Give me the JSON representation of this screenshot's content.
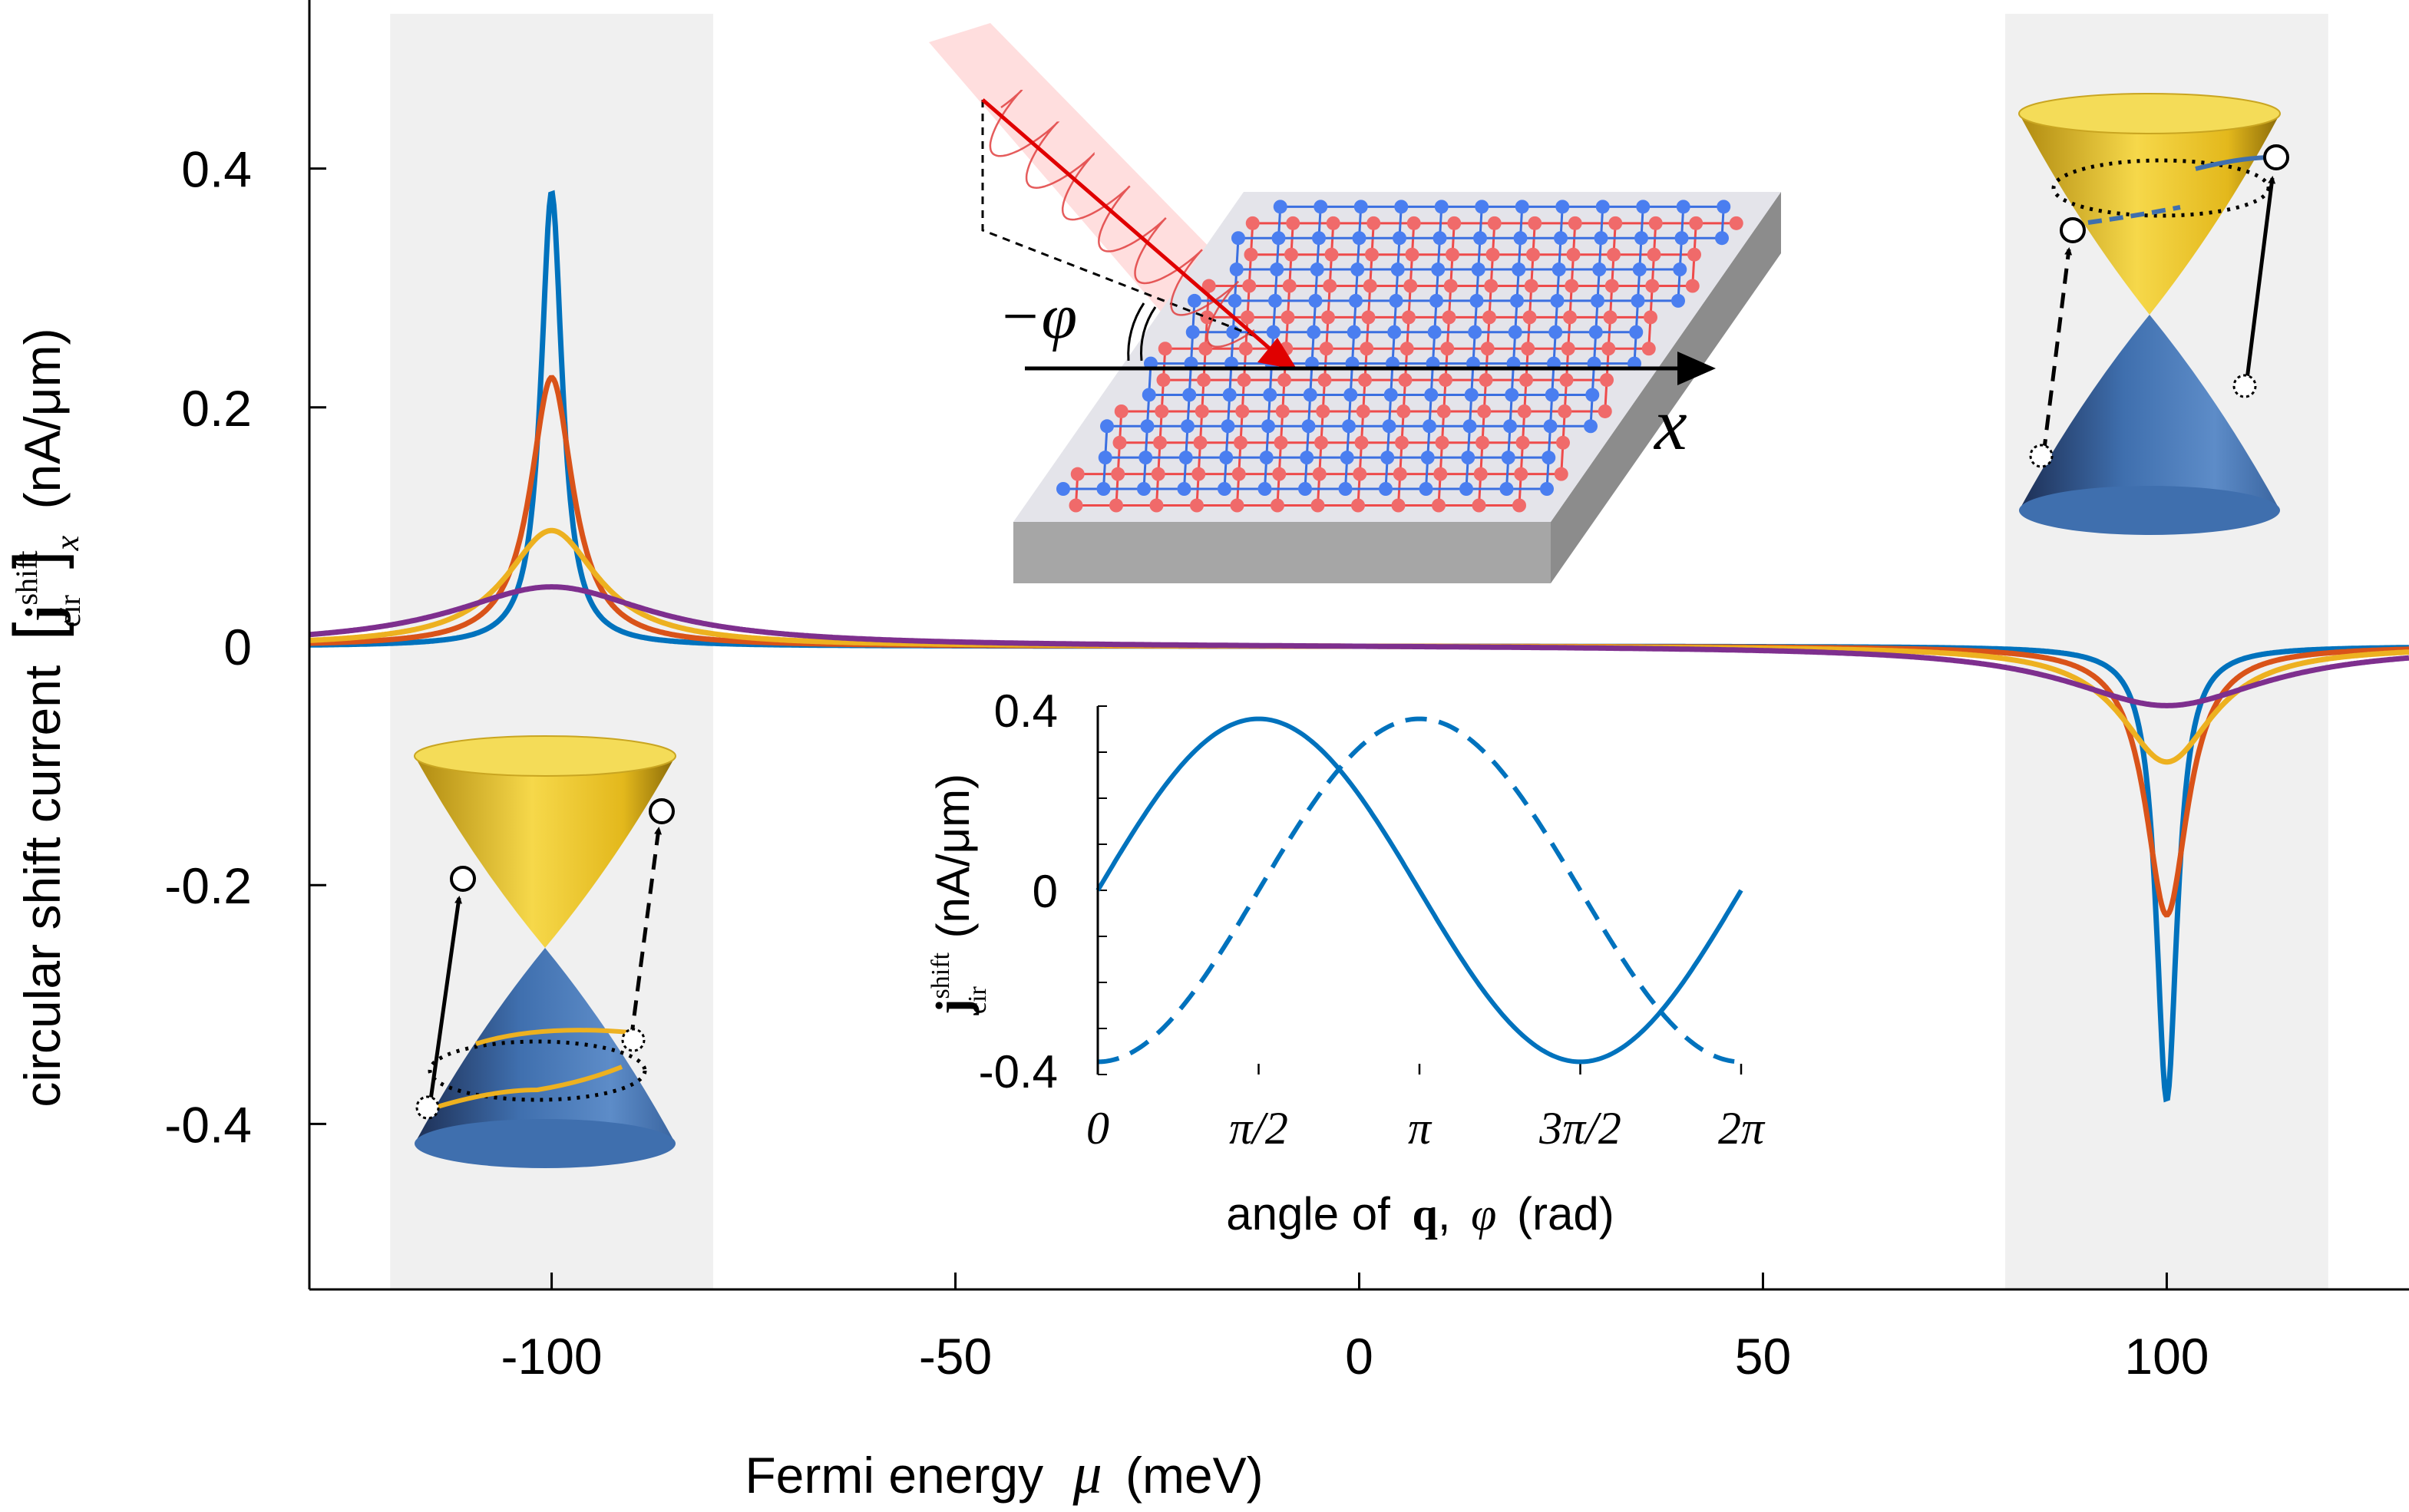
{
  "chart_data": [
    {
      "type": "line",
      "title": "",
      "xlabel": "Fermi energy μ (meV)",
      "xlabel_text": "Fermi energy",
      "xlabel_symbol": "μ",
      "xlabel_unit": "(meV)",
      "ylabel": "circular shift current [j_cir^shift]_x (nA/μm)",
      "ylabel_text": "circular shift current",
      "ylabel_bold": "j",
      "ylabel_sup": "shift",
      "ylabel_sub": "cir",
      "ylabel_outer_sub": "x",
      "ylabel_unit": "(nA/μm)",
      "xlim": [
        -130,
        130
      ],
      "ylim": [
        -0.54,
        0.54
      ],
      "xticks": [
        -100,
        -50,
        0,
        50,
        100
      ],
      "xtick_labels": [
        "-100",
        "-50",
        "0",
        "50",
        "100"
      ],
      "yticks": [
        -0.4,
        -0.2,
        0,
        0.2,
        0.4
      ],
      "ytick_labels": [
        "-0.4",
        "-0.2",
        "0",
        "0.2",
        "0.4"
      ],
      "shaded_regions": [
        [
          -120,
          -80
        ],
        [
          80,
          120
        ]
      ],
      "series": [
        {
          "color": "#0072BD",
          "peak_at_minus_100": 0.38,
          "peak_at_plus_100": -0.38,
          "width_meV": 1.6
        },
        {
          "color": "#D95319",
          "peak_at_minus_100": 0.225,
          "peak_at_plus_100": -0.225,
          "width_meV": 3.2
        },
        {
          "color": "#EDB120",
          "peak_at_minus_100": 0.097,
          "peak_at_plus_100": -0.097,
          "width_meV": 7.0
        },
        {
          "color": "#7E2F8E",
          "peak_at_minus_100": 0.05,
          "peak_at_plus_100": -0.05,
          "width_meV": 15.0
        }
      ]
    },
    {
      "type": "line",
      "title": "",
      "xlabel": "angle of q, φ (rad)",
      "xlabel_text": "angle of",
      "xlabel_bold": "q",
      "xlabel_sep": ",",
      "xlabel_symbol": "φ",
      "xlabel_unit": "(rad)",
      "ylabel": "j_cir^shift (nA/μm)",
      "ylabel_bold": "j",
      "ylabel_sup": "shift",
      "ylabel_sub": "cir",
      "ylabel_unit": "(nA/μm)",
      "xlim": [
        0,
        6.2832
      ],
      "ylim": [
        -0.4,
        0.4
      ],
      "xtick_labels": [
        "0",
        "π/2",
        "π",
        "3π/2",
        "2π"
      ],
      "ytick_labels": [
        "0.4",
        "0",
        "-0.4"
      ],
      "series": [
        {
          "style": "solid",
          "color": "#0072BD",
          "function": "0.38*sin(phi)"
        },
        {
          "style": "dashed",
          "color": "#0072BD",
          "function": "-0.38*cos(phi)"
        }
      ]
    }
  ],
  "illustration": {
    "axis_label": "x",
    "angle_label": "−φ",
    "lattice_colors": [
      "#3B6FE0",
      "#EE4B4B"
    ],
    "cone_colors": {
      "conduction": "#E8C21F",
      "valence": "#3F6FAE"
    }
  }
}
